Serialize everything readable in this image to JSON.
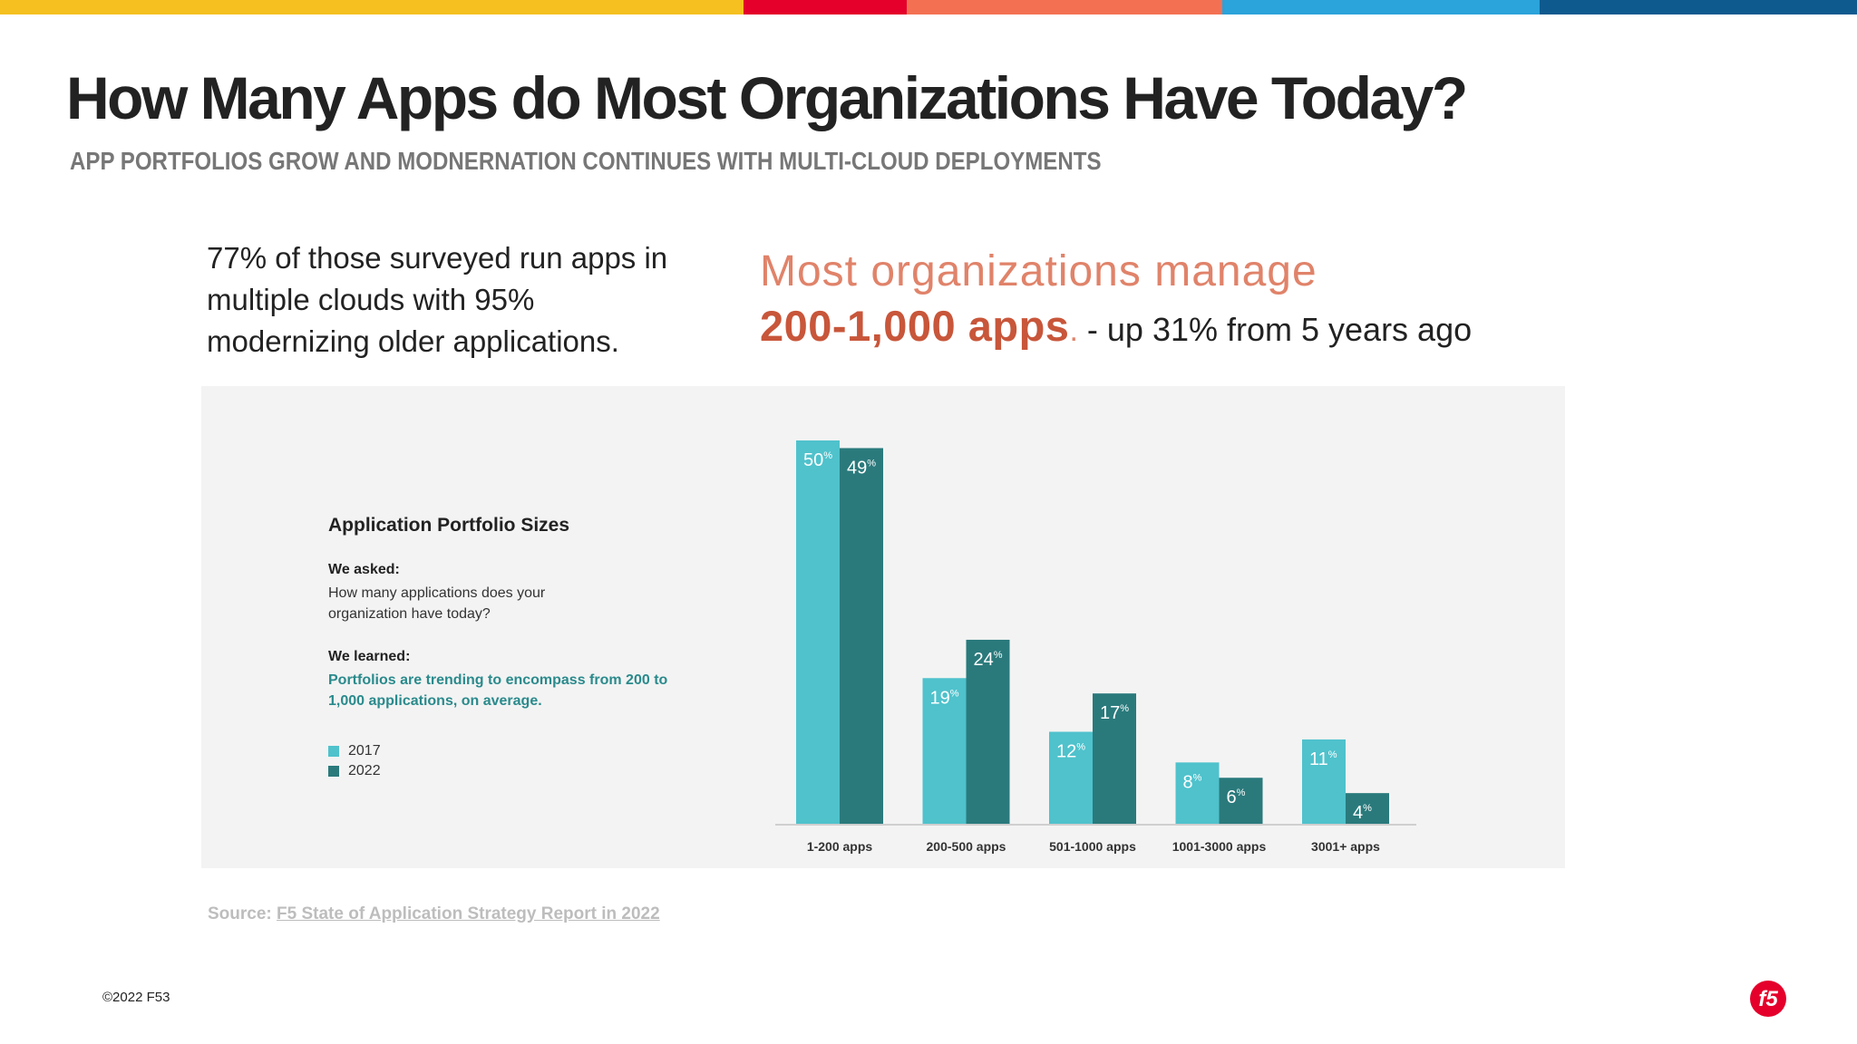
{
  "colors": {
    "top_bar": [
      "#f5c020",
      "#e4002b",
      "#f37152",
      "#2ba3db",
      "#0e5a8f"
    ],
    "series_2017": "#4fc2cc",
    "series_2022": "#2a7a7c"
  },
  "header": {
    "title": "How Many Apps do Most Organizations Have Today?",
    "subtitle": "APP PORTFOLIOS GROW AND MODNERNATION CONTINUES WITH MULTI-CLOUD DEPLOYMENTS"
  },
  "left_text": {
    "line1": "77% of those surveyed run apps in",
    "line2": "multiple  clouds with 95%",
    "line3": "modernizing  older applications."
  },
  "highlight": {
    "line1": "Most organizations manage",
    "apps": "200-1,000 apps",
    "dot": ".",
    "rest": " - up 31% from 5 years ago"
  },
  "panel": {
    "title": "Application Portfolio Sizes",
    "asked_label": "We asked:",
    "question": "How many applications does your organization have today?",
    "learned_label": "We learned:",
    "answer": "Portfolios are trending to encompass from 200 to 1,000 applications, on average."
  },
  "chart_data": {
    "type": "bar",
    "categories": [
      "1-200 apps",
      "200-500 apps",
      "501-1000 apps",
      "1001-3000 apps",
      "3001+ apps"
    ],
    "series": [
      {
        "name": "2017",
        "values": [
          50,
          19,
          12,
          8,
          11
        ]
      },
      {
        "name": "2022",
        "values": [
          49,
          24,
          17,
          6,
          4
        ]
      }
    ],
    "value_suffix": "%",
    "ylim": [
      0,
      50
    ],
    "legend": "left"
  },
  "source": {
    "label": "Source: ",
    "link_text": "F5 State of Application Strategy Report in 2022"
  },
  "footer": {
    "copyright": "©2022 F5",
    "page_number": "3",
    "logo_text": "f5"
  }
}
